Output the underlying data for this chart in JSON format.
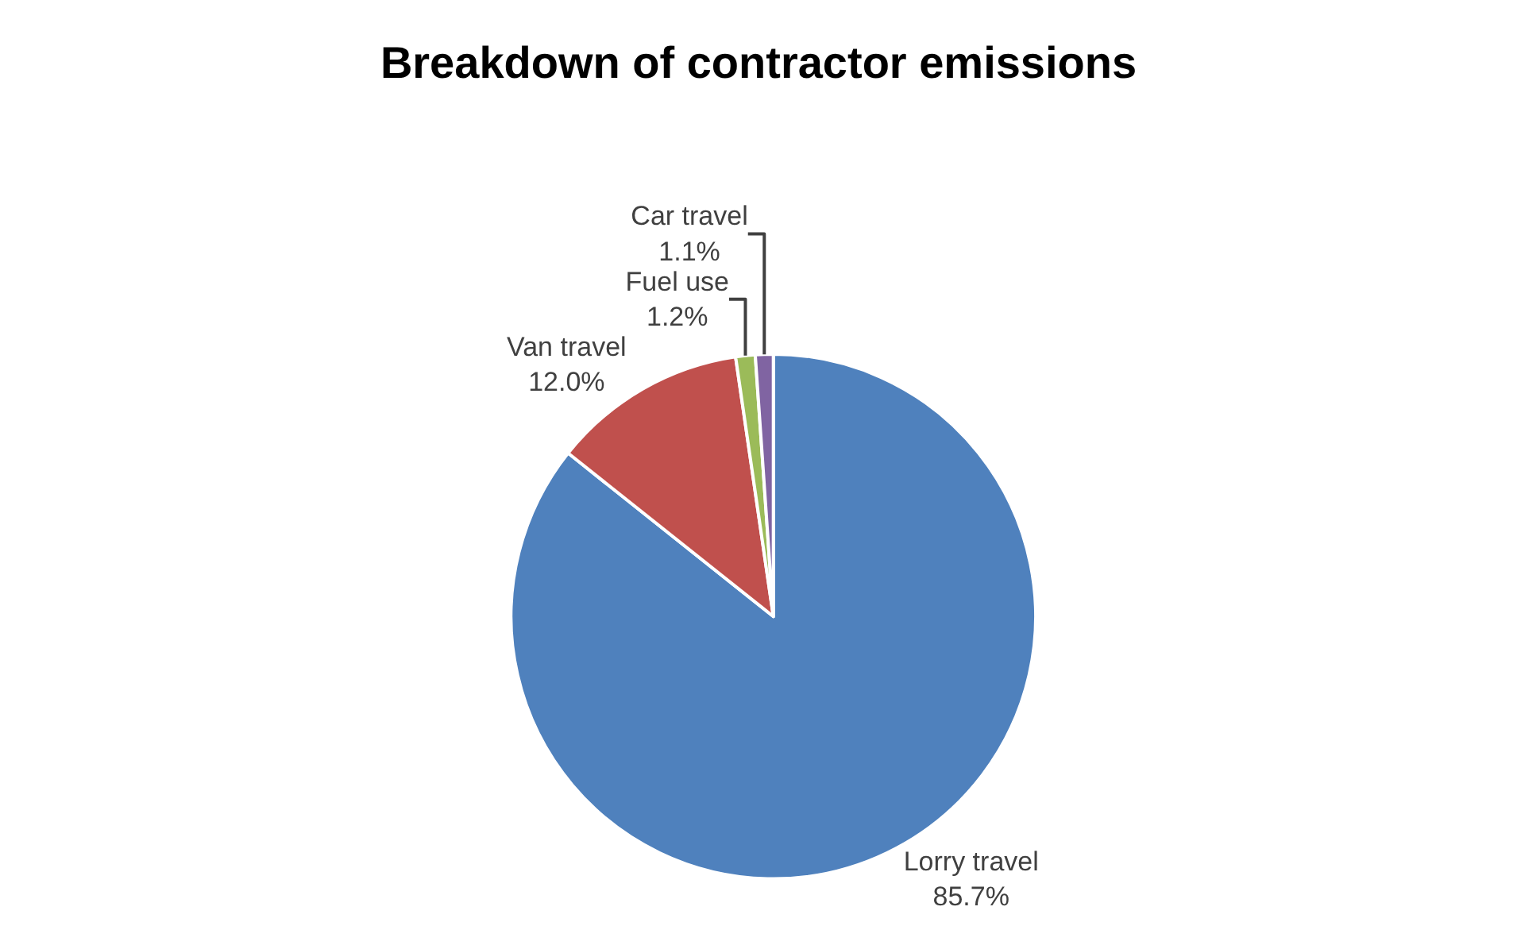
{
  "chart_data": {
    "type": "pie",
    "title": "Breakdown of contractor emissions",
    "categories": [
      "Lorry travel",
      "Van travel",
      "Fuel use",
      "Car travel"
    ],
    "values": [
      85.7,
      12.0,
      1.2,
      1.1
    ],
    "value_labels": [
      "85.7%",
      "12.0%",
      "1.2%",
      "1.1%"
    ],
    "colors": [
      "#4f81bd",
      "#c0504d",
      "#9bbb59",
      "#8064a2"
    ],
    "legend": false
  }
}
